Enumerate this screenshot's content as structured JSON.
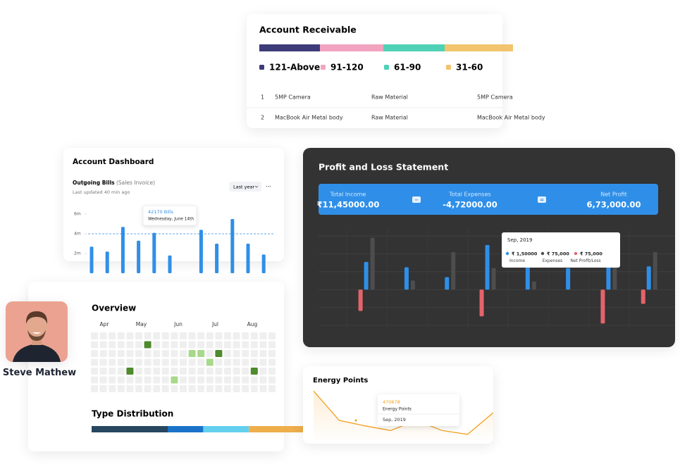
{
  "receivable": {
    "title": "Account Receivable",
    "segments": [
      {
        "name": "121-Above",
        "color": "#3d3b78",
        "value": 24
      },
      {
        "name": "91-120",
        "color": "#f2a3bf",
        "value": 25
      },
      {
        "name": "61-90",
        "color": "#4fd1b5",
        "value": 24
      },
      {
        "name": "31-60",
        "color": "#f2c46d",
        "value": 27
      }
    ],
    "rows": [
      [
        "1",
        "5MP Camera",
        "Raw Material",
        "5MP Camera"
      ],
      [
        "2",
        "MacBook Air Metal body",
        "Raw Material",
        "MacBook Air Metal body"
      ]
    ]
  },
  "dashboard": {
    "title": "Account Dashboard",
    "subtitle": "Outgoing Bills",
    "subtitle_note": "(Sales Invoice)",
    "updated": "Last updated 40 min ago",
    "filter": "Last year",
    "more": "···",
    "color": "#2f8fe8",
    "ylim": [
      0,
      6.7
    ],
    "yticks": [
      {
        "value": 2,
        "label": "2m"
      },
      {
        "value": 4,
        "label": "4m"
      },
      {
        "value": 6,
        "label": "6m"
      }
    ],
    "reference_line": 4,
    "values": [
      2.7,
      2.2,
      4.7,
      3.3,
      4.1,
      1.8,
      null,
      4.4,
      3.0,
      5.5,
      3.0,
      1.9
    ],
    "tooltip": {
      "title": "42170 Bills",
      "subtitle": "Wednesday, June 14th"
    }
  },
  "pnl": {
    "title": "Profit and Loss Statement",
    "summary": [
      {
        "label": "Total Income",
        "value": "₹11,45000.00"
      },
      {
        "label": "Total Expenses",
        "value": "-4,72000.00"
      },
      {
        "label": "Net Profit",
        "value": "6,73,000.00"
      }
    ],
    "ops": [
      "−",
      "="
    ],
    "ylim": [
      -2.2,
      3.4
    ],
    "yticks": [
      -2,
      -1,
      0,
      1,
      2,
      3
    ],
    "grid": true,
    "categories": [
      null,
      null,
      null,
      null,
      null,
      null,
      null,
      null
    ],
    "series": [
      {
        "name": "Income",
        "color": "#2f8fe8",
        "values": [
          1.55,
          1.25,
          0.7,
          2.5,
          1.5,
          1.2,
          1.5,
          1.3
        ]
      },
      {
        "name": "Expenses",
        "color": "#4d4d4d",
        "values": [
          2.9,
          0.5,
          2.1,
          1.2,
          0.45,
          null,
          3.1,
          2.1
        ]
      },
      {
        "name": "Net Profit/Loss",
        "color": "#e5636b",
        "values": [
          -1.2,
          null,
          null,
          -1.5,
          null,
          null,
          -1.9,
          -0.8
        ]
      }
    ],
    "tooltip": {
      "title": "Sep, 2019",
      "values": [
        "₹ 1,50000",
        "₹ 75,000",
        "₹ 75,000"
      ]
    }
  },
  "overview": {
    "title": "Overview",
    "months": [
      "Apr",
      "May",
      "Jun",
      "Jul",
      "Aug"
    ],
    "cells": [
      [
        0,
        0,
        0,
        0,
        0,
        0,
        0,
        0,
        0,
        0,
        0,
        0,
        0,
        0,
        0,
        0,
        0,
        0,
        0,
        0,
        0
      ],
      [
        0,
        0,
        0,
        0,
        0,
        0,
        2,
        0,
        0,
        0,
        0,
        0,
        0,
        0,
        0,
        0,
        0,
        0,
        0,
        0,
        0
      ],
      [
        0,
        0,
        0,
        0,
        0,
        0,
        0,
        0,
        0,
        0,
        0,
        1,
        1,
        0,
        2,
        0,
        0,
        0,
        0,
        0,
        0
      ],
      [
        0,
        0,
        0,
        0,
        0,
        0,
        0,
        0,
        0,
        0,
        0,
        0,
        0,
        1,
        0,
        0,
        0,
        0,
        0,
        0,
        0
      ],
      [
        0,
        0,
        0,
        0,
        2,
        0,
        0,
        0,
        0,
        0,
        0,
        0,
        0,
        0,
        0,
        0,
        0,
        0,
        2,
        0,
        0
      ],
      [
        0,
        0,
        0,
        0,
        0,
        0,
        0,
        0,
        0,
        1,
        0,
        0,
        0,
        0,
        0,
        0,
        0,
        0,
        0,
        0,
        0
      ],
      [
        0,
        0,
        0,
        0,
        0,
        0,
        0,
        0,
        0,
        0,
        0,
        0,
        0,
        0,
        0,
        0,
        0,
        0,
        0,
        0,
        0
      ]
    ],
    "level_colors": [
      "#efefef",
      "#a8d98a",
      "#4f8a2c"
    ],
    "distribution_title": "Type Distribution",
    "distribution": [
      {
        "color": "#27465f",
        "value": 30
      },
      {
        "color": "#1a73c9",
        "value": 14
      },
      {
        "color": "#63d0ef",
        "value": 18
      },
      {
        "color": "#eeae4c",
        "value": 38
      }
    ]
  },
  "profile": {
    "name": "Steve Mathew"
  },
  "energy": {
    "title": "Energy Points",
    "color": "#f0a020",
    "ylim": [
      0,
      10
    ],
    "values": [
      6.8,
      3.0,
      2.3,
      1.7,
      3.0,
      1.7,
      1.2,
      4.0
    ],
    "tooltip": {
      "value": "470678",
      "label": "Energy Points",
      "date": "Sep, 2019"
    }
  }
}
